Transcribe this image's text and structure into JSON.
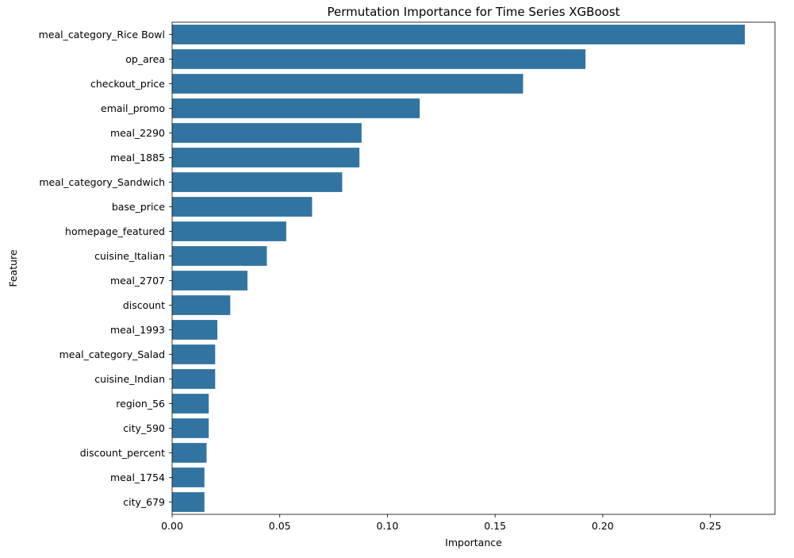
{
  "chart_data": {
    "type": "bar",
    "orientation": "horizontal",
    "title": "Permutation Importance for Time Series XGBoost",
    "xlabel": "Importance",
    "ylabel": "Feature",
    "categories": [
      "meal_category_Rice Bowl",
      "op_area",
      "checkout_price",
      "email_promo",
      "meal_2290",
      "meal_1885",
      "meal_category_Sandwich",
      "base_price",
      "homepage_featured",
      "cuisine_Italian",
      "meal_2707",
      "discount",
      "meal_1993",
      "meal_category_Salad",
      "cuisine_Indian",
      "region_56",
      "city_590",
      "discount_percent",
      "meal_1754",
      "city_679"
    ],
    "values": [
      0.266,
      0.192,
      0.163,
      0.115,
      0.088,
      0.087,
      0.079,
      0.065,
      0.053,
      0.044,
      0.035,
      0.027,
      0.021,
      0.02,
      0.02,
      0.017,
      0.017,
      0.016,
      0.015,
      0.015
    ],
    "xlim": [
      0,
      0.28
    ],
    "xticks": [
      0.0,
      0.05,
      0.1,
      0.15,
      0.2,
      0.25
    ],
    "xtick_labels": [
      "0.00",
      "0.05",
      "0.10",
      "0.15",
      "0.20",
      "0.25"
    ],
    "grid": false,
    "bar_color": "#3274a1"
  }
}
